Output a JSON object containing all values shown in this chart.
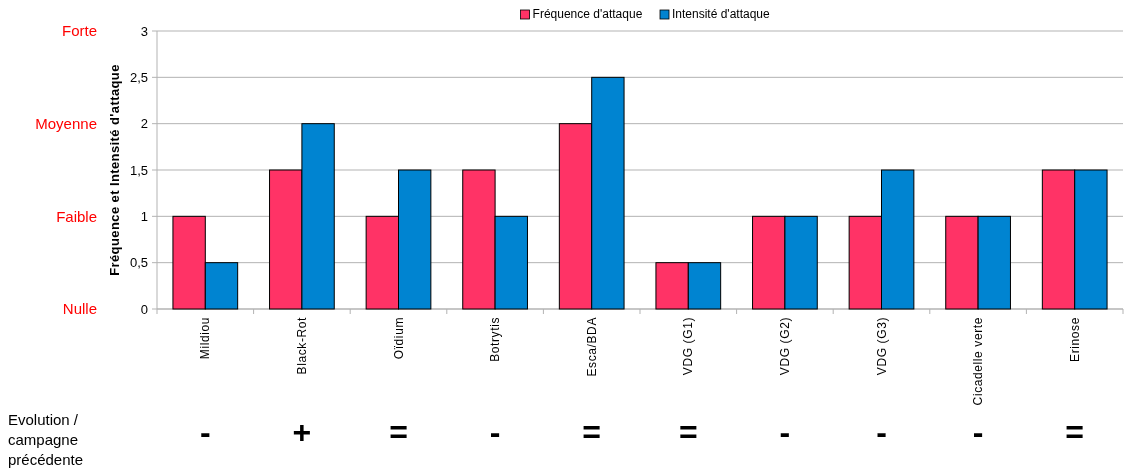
{
  "chart_data": {
    "type": "bar",
    "ylabel": "Fréquence et Intensité d'attaque",
    "categories": [
      "Mildiou",
      "Black-Rot",
      "Oïdium",
      "Botrytis",
      "Esca/BDA",
      "VDG (G1)",
      "VDG (G2)",
      "VDG (G3)",
      "Cicadelle verte",
      "Erinose"
    ],
    "series": [
      {
        "name": "Fréquence d'attaque",
        "color": "#ff3366",
        "values": [
          1,
          1.5,
          1,
          1.5,
          2,
          0.5,
          1,
          1,
          1,
          1.5
        ]
      },
      {
        "name": "Intensité d'attaque",
        "color": "#0084d1",
        "values": [
          0.5,
          2,
          1.5,
          1,
          2.5,
          0.5,
          1,
          1.5,
          1,
          1.5
        ]
      }
    ],
    "ylim": [
      0,
      3
    ],
    "yticks": [
      0,
      {
        "value": 0.5,
        "label": "0,5"
      },
      1,
      {
        "value": 1.5,
        "label": "1,5"
      },
      2,
      {
        "value": 2.5,
        "label": "2,5"
      },
      3
    ],
    "grid": "y",
    "legend": "top",
    "annotations": [
      "Forte",
      "Moyenne",
      "Faible",
      "Nulle",
      "Evolution / campagne précédente",
      "-",
      "+",
      "=",
      "-",
      "=",
      "=",
      "-",
      "-",
      "-",
      "="
    ]
  }
}
